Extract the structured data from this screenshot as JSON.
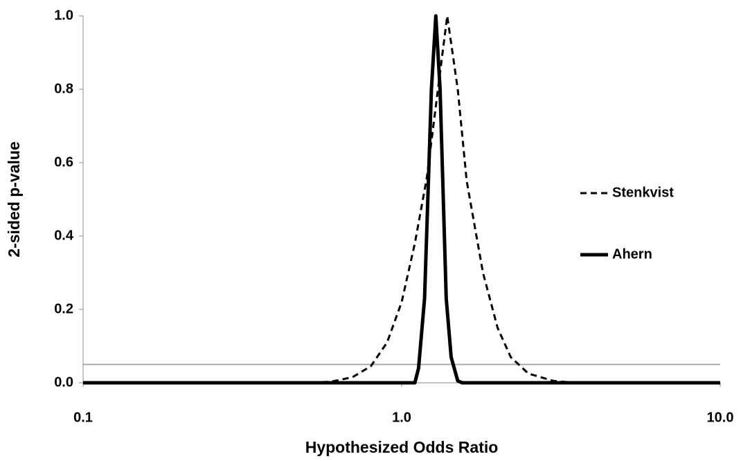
{
  "chart_data": {
    "type": "line",
    "x_label": "Hypothesized Odds Ratio",
    "y_label": "2-sided p-value",
    "xscale": "log",
    "xlim": [
      0.1,
      10
    ],
    "xticks": [
      0.1,
      {
        "value": 1,
        "label": "1.0"
      },
      {
        "value": 10,
        "label": "10.0"
      }
    ],
    "ylim": [
      0,
      1
    ],
    "yticks": [
      {
        "value": 0,
        "label": "0.0"
      },
      0.2,
      0.4,
      0.6,
      0.8,
      {
        "value": 1,
        "label": "1.0"
      }
    ],
    "reference_line": {
      "value": 0.05,
      "color": "#aaaaaa"
    },
    "legend": "right",
    "series": [
      {
        "name": "Stenkvist",
        "color": "#000000",
        "style": "dashed",
        "x": [
          0.1,
          0.5,
          0.6,
          0.7,
          0.8,
          0.9,
          1.0,
          1.1,
          1.2,
          1.3,
          1.39,
          1.5,
          1.6,
          1.8,
          2.0,
          2.2,
          2.5,
          3.0,
          3.5,
          10
        ],
        "values": [
          0,
          0,
          0.003,
          0.015,
          0.045,
          0.11,
          0.22,
          0.38,
          0.56,
          0.8,
          1.0,
          0.8,
          0.55,
          0.3,
          0.15,
          0.07,
          0.025,
          0.005,
          0,
          0
        ]
      },
      {
        "name": "Ahern",
        "color": "#000000",
        "style": "solid",
        "x": [
          0.1,
          1.1,
          1.13,
          1.18,
          1.24,
          1.28,
          1.32,
          1.38,
          1.43,
          1.5,
          1.55,
          10
        ],
        "values": [
          0,
          0,
          0.04,
          0.23,
          0.8,
          1.0,
          0.8,
          0.23,
          0.07,
          0.005,
          0,
          0
        ]
      }
    ]
  }
}
